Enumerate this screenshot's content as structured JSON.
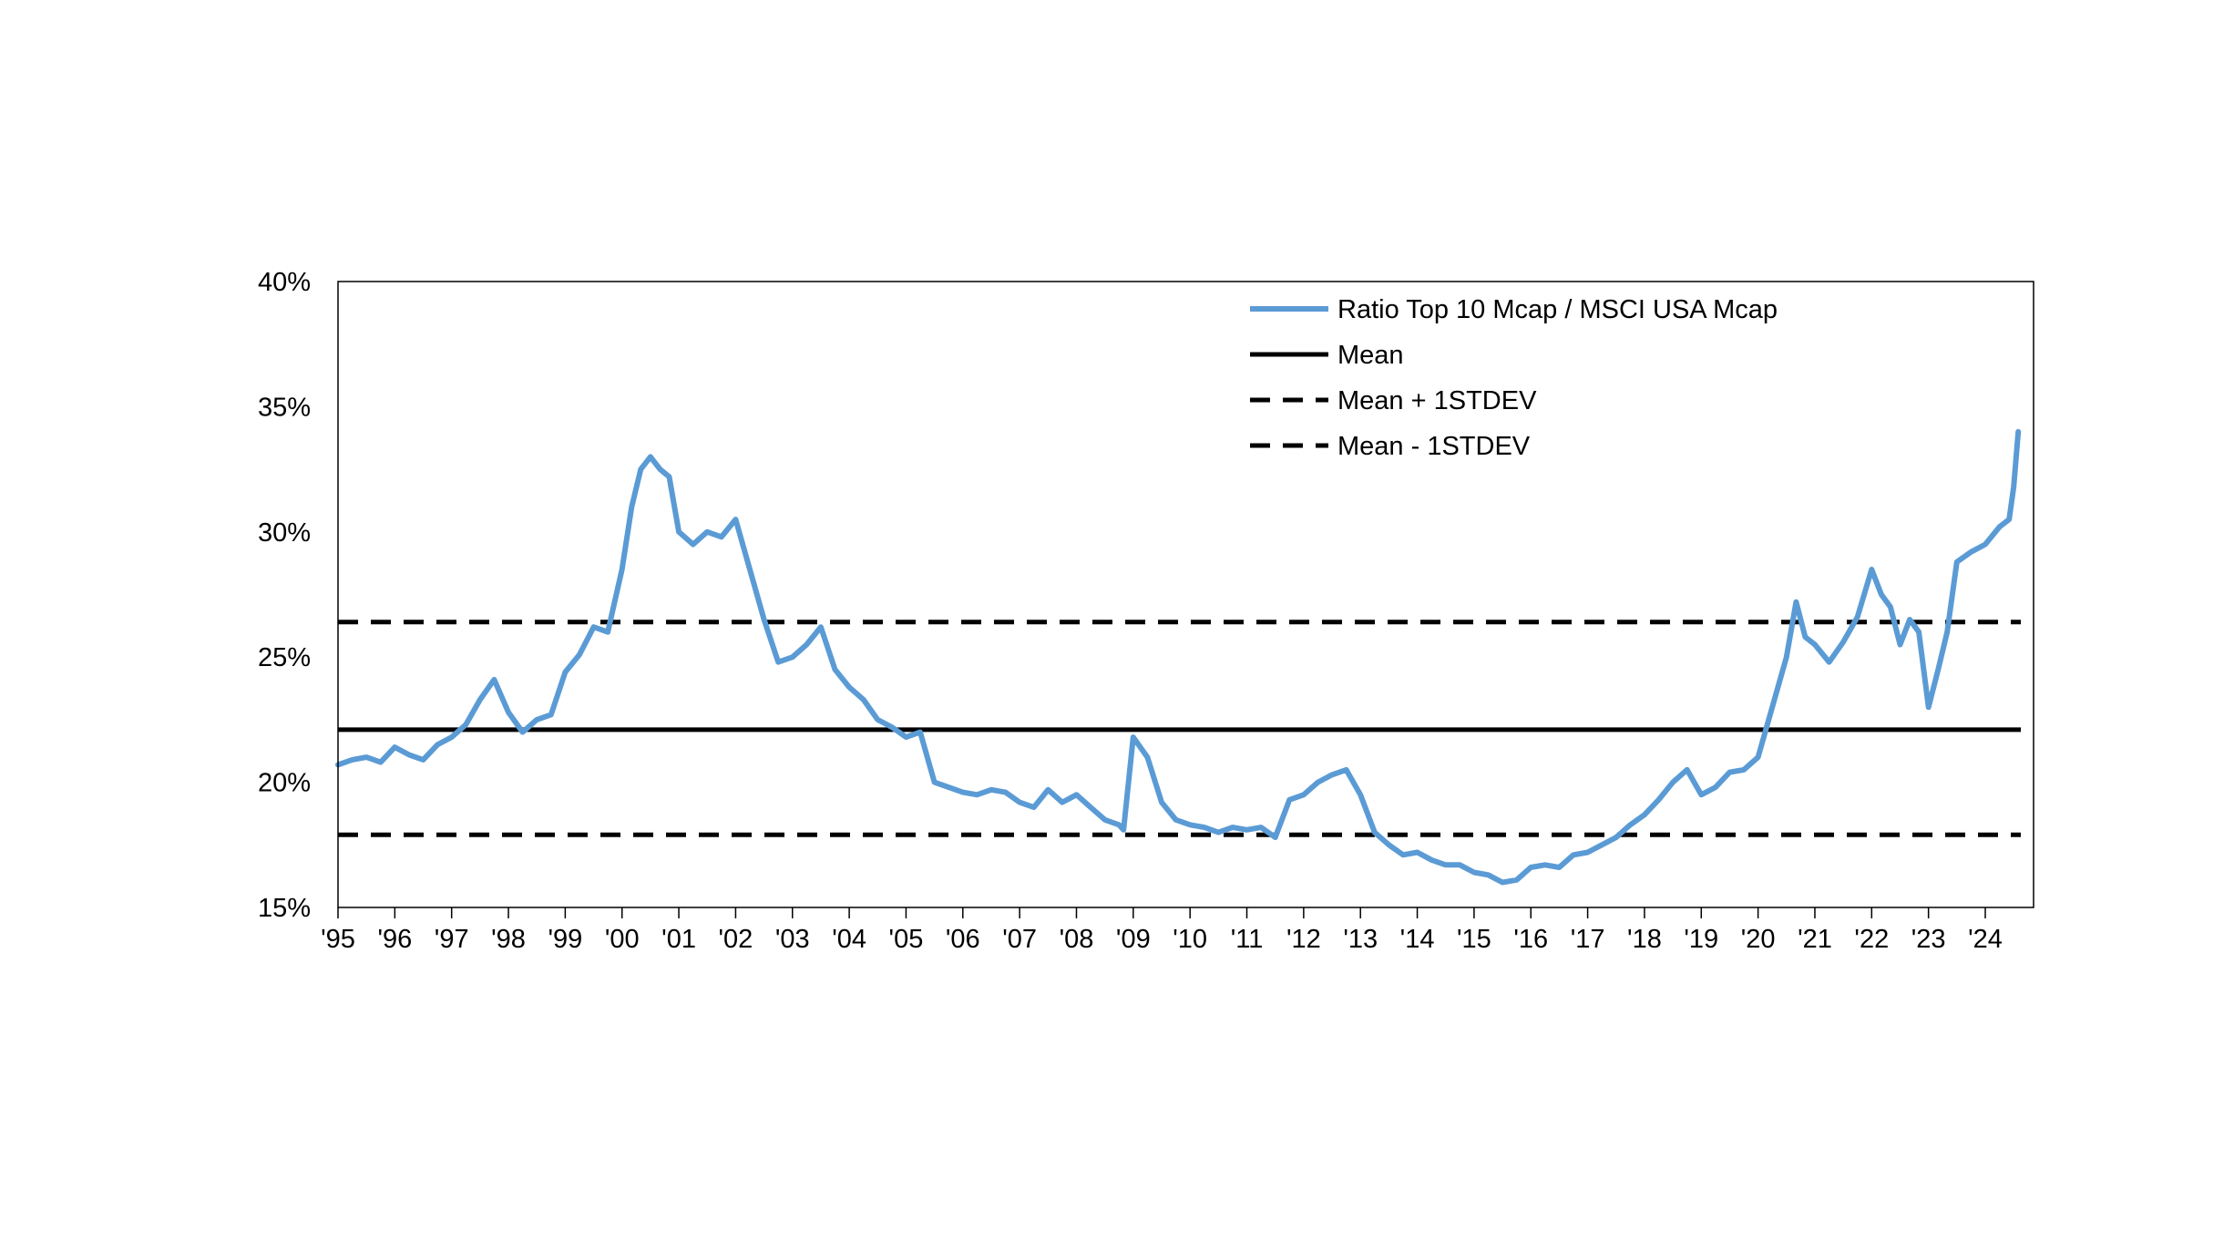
{
  "chart_data": {
    "type": "line",
    "title": "",
    "xlabel": "",
    "ylabel": "",
    "ylim": [
      0.15,
      0.4
    ],
    "xlim": [
      1995.0,
      2024.85
    ],
    "y_ticks": [
      0.15,
      0.2,
      0.25,
      0.3,
      0.35,
      0.4
    ],
    "y_tick_labels": [
      "15%",
      "20%",
      "25%",
      "30%",
      "35%",
      "40%"
    ],
    "x_ticks": [
      1995,
      1996,
      1997,
      1998,
      1999,
      2000,
      2001,
      2002,
      2003,
      2004,
      2005,
      2006,
      2007,
      2008,
      2009,
      2010,
      2011,
      2012,
      2013,
      2014,
      2015,
      2016,
      2017,
      2018,
      2019,
      2020,
      2021,
      2022,
      2023,
      2024
    ],
    "x_tick_labels": [
      "'95",
      "'96",
      "'97",
      "'98",
      "'99",
      "'00",
      "'01",
      "'02",
      "'03",
      "'04",
      "'05",
      "'06",
      "'07",
      "'08",
      "'09",
      "'10",
      "'11",
      "'12",
      "'13",
      "'14",
      "'15",
      "'16",
      "'17",
      "'18",
      "'19",
      "'20",
      "'21",
      "'22",
      "'23",
      "'24"
    ],
    "grid": false,
    "legend_position": "top-right",
    "colors": {
      "ratio": "#5b9bd5",
      "mean": "#000000",
      "stdev": "#000000"
    },
    "series": [
      {
        "name": "Ratio Top 10 Mcap / MSCI USA Mcap",
        "style": "solid",
        "x": [
          1995.0,
          1995.25,
          1995.5,
          1995.75,
          1996.0,
          1996.25,
          1996.5,
          1996.75,
          1997.0,
          1997.25,
          1997.5,
          1997.75,
          1998.0,
          1998.25,
          1998.5,
          1998.75,
          1999.0,
          1999.25,
          1999.5,
          1999.75,
          2000.0,
          2000.17,
          2000.33,
          2000.5,
          2000.67,
          2000.83,
          2001.0,
          2001.25,
          2001.5,
          2001.75,
          2002.0,
          2002.25,
          2002.5,
          2002.75,
          2003.0,
          2003.25,
          2003.5,
          2003.75,
          2004.0,
          2004.25,
          2004.5,
          2004.75,
          2005.0,
          2005.25,
          2005.5,
          2005.75,
          2006.0,
          2006.25,
          2006.5,
          2006.75,
          2007.0,
          2007.25,
          2007.5,
          2007.75,
          2008.0,
          2008.25,
          2008.5,
          2008.75,
          2008.83,
          2009.0,
          2009.25,
          2009.5,
          2009.75,
          2010.0,
          2010.25,
          2010.5,
          2010.75,
          2011.0,
          2011.25,
          2011.5,
          2011.75,
          2012.0,
          2012.25,
          2012.5,
          2012.75,
          2013.0,
          2013.25,
          2013.5,
          2013.75,
          2014.0,
          2014.25,
          2014.5,
          2014.75,
          2015.0,
          2015.25,
          2015.5,
          2015.75,
          2016.0,
          2016.25,
          2016.5,
          2016.75,
          2017.0,
          2017.25,
          2017.5,
          2017.75,
          2018.0,
          2018.25,
          2018.5,
          2018.75,
          2019.0,
          2019.25,
          2019.5,
          2019.75,
          2020.0,
          2020.25,
          2020.5,
          2020.67,
          2020.83,
          2021.0,
          2021.25,
          2021.5,
          2021.75,
          2022.0,
          2022.17,
          2022.33,
          2022.5,
          2022.67,
          2022.83,
          2023.0,
          2023.17,
          2023.33,
          2023.5,
          2023.75,
          2024.0,
          2024.25,
          2024.42,
          2024.5,
          2024.58
        ],
        "y": [
          0.207,
          0.209,
          0.21,
          0.208,
          0.214,
          0.211,
          0.209,
          0.215,
          0.218,
          0.223,
          0.233,
          0.241,
          0.228,
          0.22,
          0.225,
          0.227,
          0.244,
          0.251,
          0.262,
          0.26,
          0.285,
          0.31,
          0.325,
          0.33,
          0.325,
          0.322,
          0.3,
          0.295,
          0.3,
          0.298,
          0.305,
          0.285,
          0.265,
          0.248,
          0.25,
          0.255,
          0.262,
          0.245,
          0.238,
          0.233,
          0.225,
          0.222,
          0.218,
          0.22,
          0.2,
          0.198,
          0.196,
          0.195,
          0.197,
          0.196,
          0.192,
          0.19,
          0.197,
          0.192,
          0.195,
          0.19,
          0.185,
          0.183,
          0.181,
          0.218,
          0.21,
          0.192,
          0.185,
          0.183,
          0.182,
          0.18,
          0.182,
          0.181,
          0.182,
          0.178,
          0.193,
          0.195,
          0.2,
          0.203,
          0.205,
          0.195,
          0.18,
          0.175,
          0.171,
          0.172,
          0.169,
          0.167,
          0.167,
          0.164,
          0.163,
          0.16,
          0.161,
          0.166,
          0.167,
          0.166,
          0.171,
          0.172,
          0.175,
          0.178,
          0.183,
          0.187,
          0.193,
          0.2,
          0.205,
          0.195,
          0.198,
          0.204,
          0.205,
          0.21,
          0.23,
          0.25,
          0.272,
          0.258,
          0.255,
          0.248,
          0.256,
          0.266,
          0.285,
          0.275,
          0.27,
          0.255,
          0.265,
          0.26,
          0.23,
          0.245,
          0.26,
          0.288,
          0.292,
          0.295,
          0.302,
          0.305,
          0.318,
          0.34
        ]
      },
      {
        "name": "Mean",
        "style": "solid",
        "value": 0.221
      },
      {
        "name": "Mean + 1STDEV",
        "style": "dashed",
        "value": 0.264
      },
      {
        "name": "Mean - 1STDEV",
        "style": "dashed",
        "value": 0.179
      }
    ]
  }
}
